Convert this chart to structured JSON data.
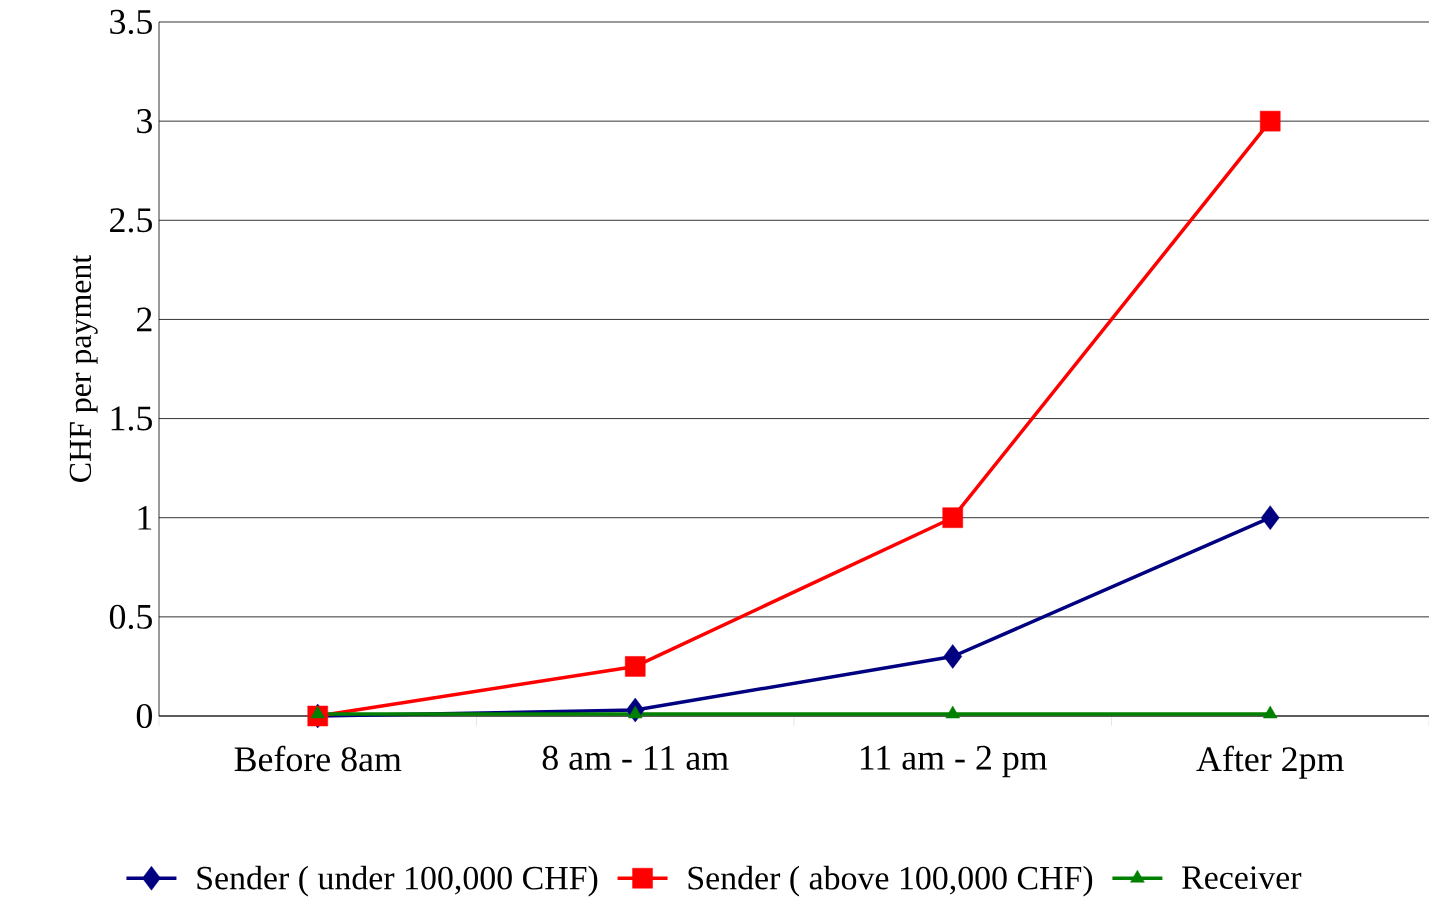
{
  "chart_data": {
    "type": "line",
    "ylabel": "CHF per payment",
    "categories": [
      "Before 8am",
      "8 am - 11 am",
      "11 am - 2 pm",
      "After 2pm"
    ],
    "series": [
      {
        "name": "Sender ( under 100,000 CHF)",
        "color": "#000080",
        "marker": "diamond",
        "values": [
          0,
          0.03,
          0.3,
          1
        ]
      },
      {
        "name": "Sender ( above 100,000 CHF)",
        "color": "#ff0000",
        "marker": "square",
        "values": [
          0,
          0.25,
          1,
          3
        ]
      },
      {
        "name": "Receiver",
        "color": "#008000",
        "marker": "triangle",
        "values": [
          0.01,
          0.01,
          0.01,
          0.01
        ]
      }
    ],
    "ylim": [
      0,
      3.5
    ],
    "yticks": [
      0,
      0.5,
      1,
      1.5,
      2,
      2.5,
      3,
      3.5
    ],
    "grid": "y",
    "legend": "bottom",
    "line_style": "solid"
  }
}
